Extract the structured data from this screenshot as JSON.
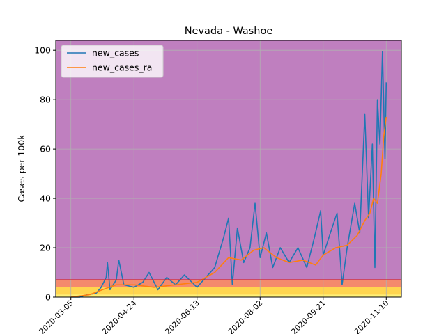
{
  "chart_data": {
    "type": "line",
    "title": "Nevada - Washoe",
    "xlabel": "",
    "ylabel": "Cases per 100k",
    "x_start": "2020-03-05",
    "x_end": "2020-11-10",
    "xlim": [
      "2020-02-22",
      "2020-11-22"
    ],
    "ylim": [
      0,
      104
    ],
    "x_ticks": [
      "2020-03-05",
      "2020-04-24",
      "2020-06-13",
      "2020-08-02",
      "2020-09-21",
      "2020-11-10"
    ],
    "y_ticks": [
      0,
      20,
      40,
      60,
      80,
      100
    ],
    "grid": true,
    "legend": "top-left",
    "bands": [
      {
        "from": 0,
        "to": 1,
        "color": "#fff176"
      },
      {
        "from": 1,
        "to": 4,
        "color": "#ffd54f"
      },
      {
        "from": 4,
        "to": 7,
        "color": "#f48a6c"
      },
      {
        "from": 7,
        "to": 104,
        "color": "#bf7fbf"
      }
    ],
    "threshold_line": {
      "value": 7,
      "color": "#d62728"
    },
    "series": [
      {
        "name": "new_cases",
        "color": "#1f77b4",
        "anchors": [
          [
            "2020-03-05",
            0
          ],
          [
            "2020-03-12",
            0
          ],
          [
            "2020-03-18",
            1
          ],
          [
            "2020-03-25",
            1.5
          ],
          [
            "2020-03-29",
            4
          ],
          [
            "2020-04-02",
            8
          ],
          [
            "2020-04-03",
            14
          ],
          [
            "2020-04-05",
            3
          ],
          [
            "2020-04-10",
            7
          ],
          [
            "2020-04-12",
            15
          ],
          [
            "2020-04-16",
            5
          ],
          [
            "2020-04-24",
            4
          ],
          [
            "2020-05-01",
            6
          ],
          [
            "2020-05-06",
            10
          ],
          [
            "2020-05-13",
            3
          ],
          [
            "2020-05-20",
            8
          ],
          [
            "2020-05-27",
            5
          ],
          [
            "2020-06-03",
            9
          ],
          [
            "2020-06-13",
            4
          ],
          [
            "2020-06-20",
            8
          ],
          [
            "2020-06-27",
            12
          ],
          [
            "2020-07-04",
            24
          ],
          [
            "2020-07-08",
            32
          ],
          [
            "2020-07-11",
            5
          ],
          [
            "2020-07-15",
            28
          ],
          [
            "2020-07-20",
            14
          ],
          [
            "2020-07-25",
            20
          ],
          [
            "2020-07-29",
            38
          ],
          [
            "2020-08-02",
            16
          ],
          [
            "2020-08-07",
            26
          ],
          [
            "2020-08-12",
            12
          ],
          [
            "2020-08-18",
            20
          ],
          [
            "2020-08-25",
            14
          ],
          [
            "2020-09-01",
            20
          ],
          [
            "2020-09-08",
            12
          ],
          [
            "2020-09-14",
            24
          ],
          [
            "2020-09-19",
            35
          ],
          [
            "2020-09-21",
            17
          ],
          [
            "2020-09-28",
            28
          ],
          [
            "2020-10-02",
            34
          ],
          [
            "2020-10-06",
            5
          ],
          [
            "2020-10-10",
            20
          ],
          [
            "2020-10-16",
            38
          ],
          [
            "2020-10-20",
            26
          ],
          [
            "2020-10-24",
            74
          ],
          [
            "2020-10-27",
            32
          ],
          [
            "2020-10-30",
            62
          ],
          [
            "2020-11-01",
            12
          ],
          [
            "2020-11-03",
            80
          ],
          [
            "2020-11-05",
            62
          ],
          [
            "2020-11-07",
            99.5
          ],
          [
            "2020-11-09",
            56
          ],
          [
            "2020-11-10",
            87
          ]
        ]
      },
      {
        "name": "new_cases_ra",
        "color": "#ff7f0e",
        "anchors": [
          [
            "2020-03-05",
            0
          ],
          [
            "2020-03-20",
            1
          ],
          [
            "2020-03-30",
            3
          ],
          [
            "2020-04-10",
            5
          ],
          [
            "2020-04-24",
            5
          ],
          [
            "2020-05-10",
            4
          ],
          [
            "2020-05-27",
            5
          ],
          [
            "2020-06-13",
            6
          ],
          [
            "2020-06-27",
            10
          ],
          [
            "2020-07-08",
            16
          ],
          [
            "2020-07-18",
            15
          ],
          [
            "2020-07-28",
            19
          ],
          [
            "2020-08-05",
            20
          ],
          [
            "2020-08-15",
            16
          ],
          [
            "2020-08-25",
            14
          ],
          [
            "2020-09-05",
            15
          ],
          [
            "2020-09-15",
            13
          ],
          [
            "2020-09-21",
            17
          ],
          [
            "2020-10-01",
            20
          ],
          [
            "2020-10-10",
            21
          ],
          [
            "2020-10-18",
            25
          ],
          [
            "2020-10-24",
            31
          ],
          [
            "2020-10-28",
            34
          ],
          [
            "2020-10-31",
            40
          ],
          [
            "2020-11-03",
            38
          ],
          [
            "2020-11-06",
            50
          ],
          [
            "2020-11-08",
            65
          ],
          [
            "2020-11-10",
            73
          ]
        ]
      }
    ]
  }
}
